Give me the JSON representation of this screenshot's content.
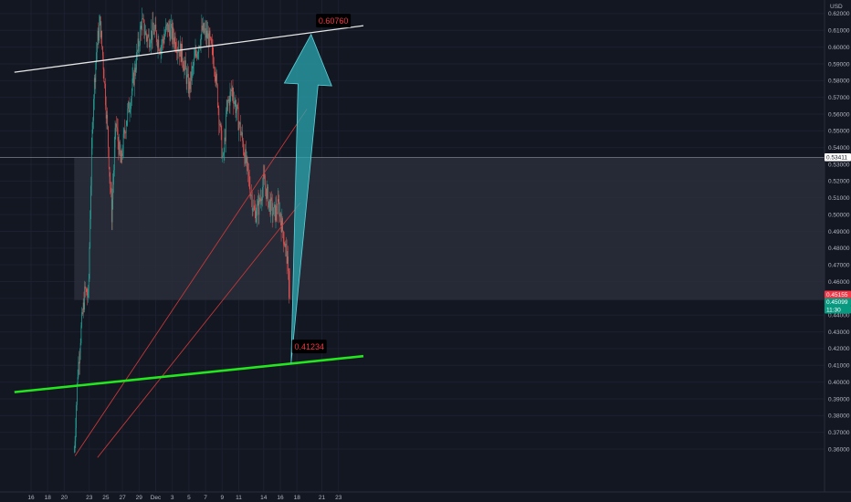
{
  "chart_data": {
    "type": "candlestick",
    "currency_label": "USD",
    "ylim": [
      0.355,
      0.625
    ],
    "y_ticks": [
      0.62,
      0.61,
      0.6,
      0.59,
      0.58,
      0.57,
      0.56,
      0.55,
      0.54,
      0.53,
      0.52,
      0.51,
      0.5,
      0.49,
      0.48,
      0.47,
      0.46,
      0.45,
      0.44,
      0.43,
      0.42,
      0.41,
      0.4,
      0.39,
      0.38,
      0.37,
      0.36
    ],
    "y_tick_labels": [
      "0.62000",
      "0.61000",
      "0.60000",
      "0.59000",
      "0.58000",
      "0.57000",
      "0.56000",
      "0.55000",
      "0.54000",
      "0.53000",
      "0.52000",
      "0.51000",
      "0.50000",
      "0.49000",
      "0.48000",
      "0.47000",
      "0.46000",
      "0.45000",
      "0.44000",
      "0.43000",
      "0.42000",
      "0.41000",
      "0.40000",
      "0.39000",
      "0.38000",
      "0.37000",
      "0.36000"
    ],
    "x_ticks": [
      {
        "label": "16",
        "day": 0
      },
      {
        "label": "18",
        "day": 2
      },
      {
        "label": "20",
        "day": 4
      },
      {
        "label": "23",
        "day": 7
      },
      {
        "label": "25",
        "day": 9
      },
      {
        "label": "27",
        "day": 11
      },
      {
        "label": "29",
        "day": 13
      },
      {
        "label": "Dec",
        "day": 15
      },
      {
        "label": "3",
        "day": 17
      },
      {
        "label": "5",
        "day": 19
      },
      {
        "label": "7",
        "day": 21
      },
      {
        "label": "9",
        "day": 23
      },
      {
        "label": "11",
        "day": 25
      },
      {
        "label": "14",
        "day": 28
      },
      {
        "label": "16",
        "day": 30
      },
      {
        "label": "18",
        "day": 32
      },
      {
        "label": "21",
        "day": 35
      },
      {
        "label": "23",
        "day": 37
      }
    ],
    "price_path": [
      {
        "day": 5.2,
        "price": 0.358
      },
      {
        "day": 5.6,
        "price": 0.405
      },
      {
        "day": 6.0,
        "price": 0.43
      },
      {
        "day": 6.5,
        "price": 0.455
      },
      {
        "day": 6.9,
        "price": 0.45
      },
      {
        "day": 7.2,
        "price": 0.52
      },
      {
        "day": 7.5,
        "price": 0.57
      },
      {
        "day": 7.9,
        "price": 0.6
      },
      {
        "day": 8.3,
        "price": 0.615
      },
      {
        "day": 8.7,
        "price": 0.59
      },
      {
        "day": 9.2,
        "price": 0.55
      },
      {
        "day": 9.7,
        "price": 0.5
      },
      {
        "day": 10.2,
        "price": 0.555
      },
      {
        "day": 10.8,
        "price": 0.53
      },
      {
        "day": 11.4,
        "price": 0.555
      },
      {
        "day": 12.0,
        "price": 0.57
      },
      {
        "day": 12.6,
        "price": 0.59
      },
      {
        "day": 13.3,
        "price": 0.615
      },
      {
        "day": 14.0,
        "price": 0.605
      },
      {
        "day": 14.8,
        "price": 0.61
      },
      {
        "day": 15.6,
        "price": 0.6
      },
      {
        "day": 16.4,
        "price": 0.612
      },
      {
        "day": 17.3,
        "price": 0.605
      },
      {
        "day": 18.2,
        "price": 0.595
      },
      {
        "day": 19.0,
        "price": 0.575
      },
      {
        "day": 19.8,
        "price": 0.595
      },
      {
        "day": 20.6,
        "price": 0.61
      },
      {
        "day": 21.4,
        "price": 0.605
      },
      {
        "day": 22.1,
        "price": 0.59
      },
      {
        "day": 22.7,
        "price": 0.555
      },
      {
        "day": 23.1,
        "price": 0.53
      },
      {
        "day": 23.6,
        "price": 0.565
      },
      {
        "day": 24.2,
        "price": 0.575
      },
      {
        "day": 24.8,
        "price": 0.56
      },
      {
        "day": 25.4,
        "price": 0.545
      },
      {
        "day": 25.9,
        "price": 0.53
      },
      {
        "day": 26.4,
        "price": 0.515
      },
      {
        "day": 26.9,
        "price": 0.5
      },
      {
        "day": 27.4,
        "price": 0.505
      },
      {
        "day": 28.0,
        "price": 0.52
      },
      {
        "day": 28.6,
        "price": 0.508
      },
      {
        "day": 29.2,
        "price": 0.5
      },
      {
        "day": 29.8,
        "price": 0.505
      },
      {
        "day": 30.3,
        "price": 0.49
      },
      {
        "day": 30.8,
        "price": 0.475
      },
      {
        "day": 31.1,
        "price": 0.449
      }
    ],
    "price_range": {
      "low": 0.358,
      "high": 0.624
    },
    "range_box": {
      "top": 0.534,
      "bottom": 0.449,
      "start_day": 5.2,
      "end_day": 40
    },
    "horizontal_line": {
      "price": 0.5341
    },
    "resistance_line": {
      "p1": {
        "day": -2,
        "price": 0.585
      },
      "p2": {
        "day": 40,
        "price": 0.6128
      }
    },
    "support_line": {
      "p1": {
        "day": -2,
        "price": 0.394
      },
      "p2": {
        "day": 40,
        "price": 0.4155
      }
    },
    "red_channel": [
      {
        "p1": {
          "day": 5.3,
          "price": 0.356
        },
        "p2": {
          "day": 33.2,
          "price": 0.563
        }
      },
      {
        "p1": {
          "day": 8.0,
          "price": 0.355
        },
        "p2": {
          "day": 32.4,
          "price": 0.507
        }
      }
    ],
    "projection_arrow": {
      "from": {
        "day": 31.3,
        "price": 0.4112
      },
      "to": {
        "day": 33.7,
        "price": 0.6076
      },
      "color": "#2aa7b0"
    },
    "annotations": [
      {
        "text": "0.41234",
        "day": 31.4,
        "price": 0.421
      },
      {
        "text": "0.60760",
        "day": 34.3,
        "price": 0.6155
      }
    ],
    "price_badges": [
      {
        "text": "0.53411",
        "price": 0.5342,
        "color": "#ffffff",
        "text_color": "#131722"
      },
      {
        "text": "0.45155",
        "price": 0.4522,
        "color": "#f23645",
        "text_color": "#ffffff"
      },
      {
        "text": "0.45099",
        "price": 0.4478,
        "color": "#089981",
        "text_color": "#ffffff"
      },
      {
        "text": "11:30",
        "price": 0.4433,
        "color": "#089981",
        "text_color": "#ffffff"
      }
    ],
    "colors": {
      "background": "#131722",
      "up": "#26a69a",
      "down": "#ef5350",
      "support": "#23e61e",
      "resistance": "#e6e6e6",
      "channel": "#d23a3a",
      "box": "#2a2e39"
    }
  }
}
